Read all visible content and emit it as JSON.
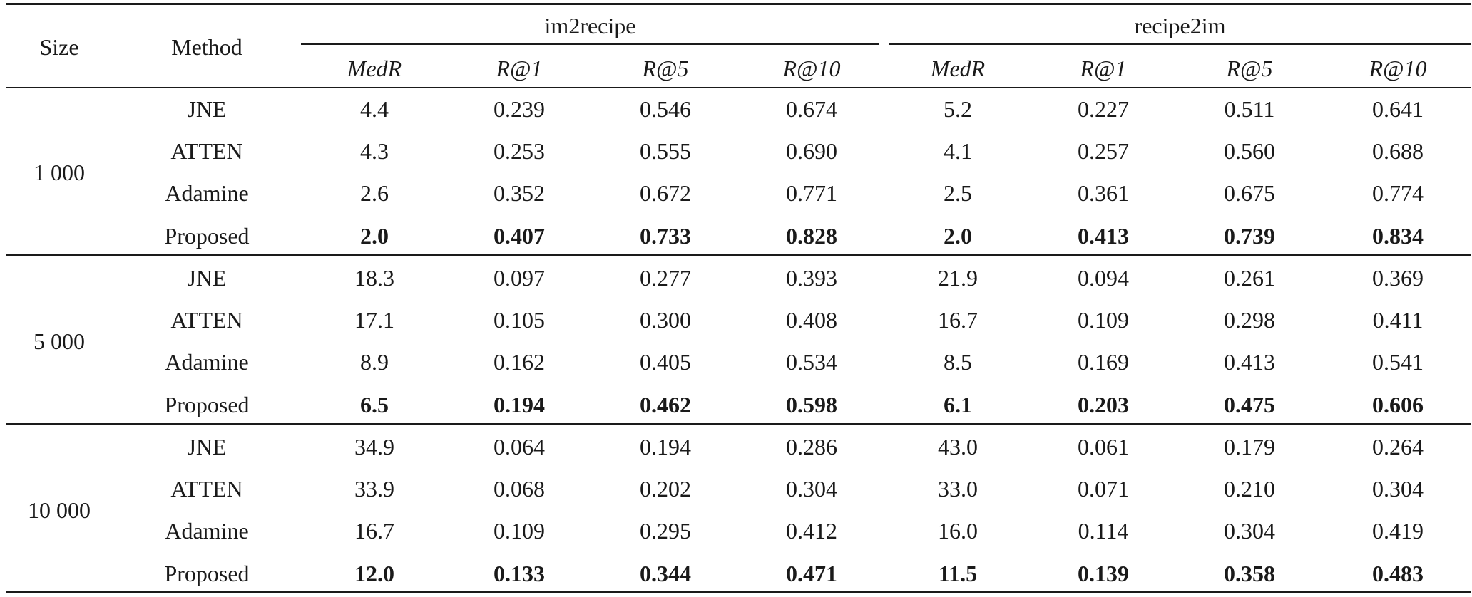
{
  "table": {
    "col_size": "Size",
    "col_method": "Method",
    "groups": [
      "im2recipe",
      "recipe2im"
    ],
    "metrics": [
      "MedR",
      "R@1",
      "R@5",
      "R@10",
      "MedR",
      "R@1",
      "R@5",
      "R@10"
    ],
    "sections": [
      {
        "size": "1 000",
        "rows": [
          {
            "method": "JNE",
            "values": [
              "4.4",
              "0.239",
              "0.546",
              "0.674",
              "5.2",
              "0.227",
              "0.511",
              "0.641"
            ],
            "bold": false
          },
          {
            "method": "ATTEN",
            "values": [
              "4.3",
              "0.253",
              "0.555",
              "0.690",
              "4.1",
              "0.257",
              "0.560",
              "0.688"
            ],
            "bold": false
          },
          {
            "method": "Adamine",
            "values": [
              "2.6",
              "0.352",
              "0.672",
              "0.771",
              "2.5",
              "0.361",
              "0.675",
              "0.774"
            ],
            "bold": false
          },
          {
            "method": "Proposed",
            "values": [
              "2.0",
              "0.407",
              "0.733",
              "0.828",
              "2.0",
              "0.413",
              "0.739",
              "0.834"
            ],
            "bold": true
          }
        ]
      },
      {
        "size": "5 000",
        "rows": [
          {
            "method": "JNE",
            "values": [
              "18.3",
              "0.097",
              "0.277",
              "0.393",
              "21.9",
              "0.094",
              "0.261",
              "0.369"
            ],
            "bold": false
          },
          {
            "method": "ATTEN",
            "values": [
              "17.1",
              "0.105",
              "0.300",
              "0.408",
              "16.7",
              "0.109",
              "0.298",
              "0.411"
            ],
            "bold": false
          },
          {
            "method": "Adamine",
            "values": [
              "8.9",
              "0.162",
              "0.405",
              "0.534",
              "8.5",
              "0.169",
              "0.413",
              "0.541"
            ],
            "bold": false
          },
          {
            "method": "Proposed",
            "values": [
              "6.5",
              "0.194",
              "0.462",
              "0.598",
              "6.1",
              "0.203",
              "0.475",
              "0.606"
            ],
            "bold": true
          }
        ]
      },
      {
        "size": "10 000",
        "rows": [
          {
            "method": "JNE",
            "values": [
              "34.9",
              "0.064",
              "0.194",
              "0.286",
              "43.0",
              "0.061",
              "0.179",
              "0.264"
            ],
            "bold": false
          },
          {
            "method": "ATTEN",
            "values": [
              "33.9",
              "0.068",
              "0.202",
              "0.304",
              "33.0",
              "0.071",
              "0.210",
              "0.304"
            ],
            "bold": false
          },
          {
            "method": "Adamine",
            "values": [
              "16.7",
              "0.109",
              "0.295",
              "0.412",
              "16.0",
              "0.114",
              "0.304",
              "0.419"
            ],
            "bold": false
          },
          {
            "method": "Proposed",
            "values": [
              "12.0",
              "0.133",
              "0.344",
              "0.471",
              "11.5",
              "0.139",
              "0.358",
              "0.483"
            ],
            "bold": true
          }
        ]
      }
    ]
  }
}
